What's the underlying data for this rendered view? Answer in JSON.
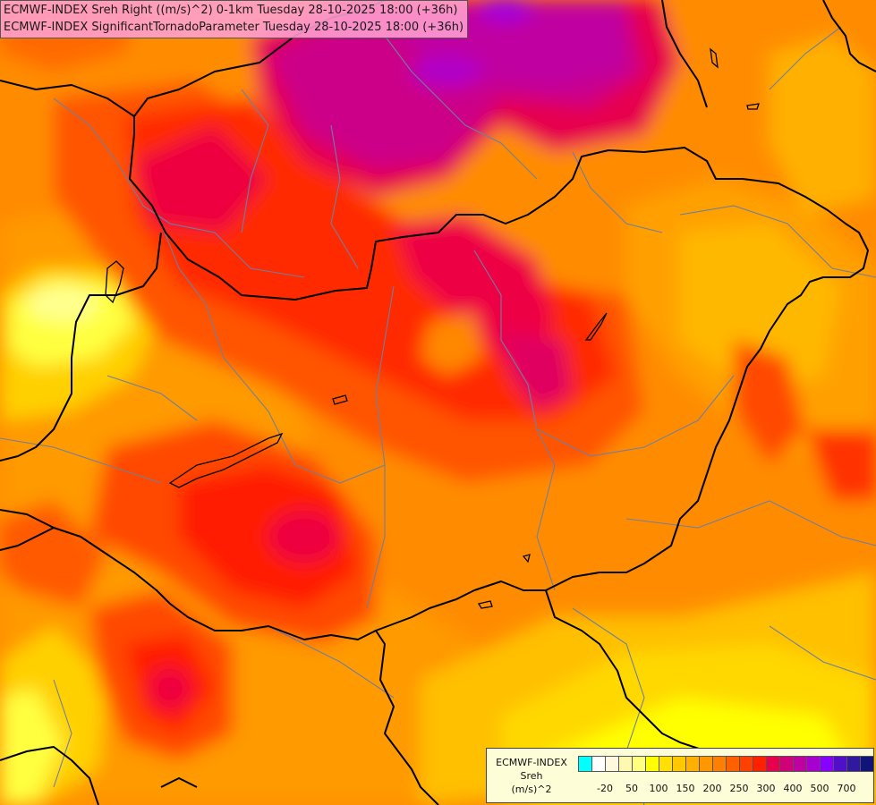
{
  "header": {
    "line1": "ECMWF-INDEX Sreh Right ((m/s)^2) 0-1km Tuesday 28-10-2025 18:00 (+36h)",
    "line2": "ECMWF-INDEX SignificantTornadoParameter Tuesday 28-10-2025 18:00 (+36h)"
  },
  "legend": {
    "model": "ECMWF-INDEX",
    "param": "Sreh",
    "unit": "(m/s)^2",
    "colors": [
      "#00ffff",
      "#ffffff",
      "#fff8e0",
      "#fff8b0",
      "#ffff80",
      "#ffff00",
      "#ffe000",
      "#ffc800",
      "#ffb000",
      "#ff9800",
      "#ff8000",
      "#ff6000",
      "#ff4000",
      "#ff2000",
      "#e8004c",
      "#d00078",
      "#c000a0",
      "#a800d0",
      "#8800ff",
      "#5010c8",
      "#3018a0",
      "#101478"
    ],
    "ticks": [
      {
        "label": "-20",
        "index": 1
      },
      {
        "label": "50",
        "index": 3
      },
      {
        "label": "100",
        "index": 5
      },
      {
        "label": "150",
        "index": 7
      },
      {
        "label": "200",
        "index": 9
      },
      {
        "label": "250",
        "index": 11
      },
      {
        "label": "300",
        "index": 13
      },
      {
        "label": "400",
        "index": 15
      },
      {
        "label": "500",
        "index": 17
      },
      {
        "label": "700",
        "index": 19
      }
    ]
  },
  "palette": {
    "orange": "#ff8c00",
    "dark_orange": "#ff6a00",
    "red_orange": "#ff4400",
    "red": "#ff1a00",
    "crimson": "#e6004e",
    "magenta": "#cc0088",
    "violet": "#b000c0",
    "yellow": "#ffff00",
    "light_yellow": "#ffff90",
    "amber": "#ffc000",
    "border_color": "#000000",
    "region_line_color": "#6f7fa0"
  }
}
